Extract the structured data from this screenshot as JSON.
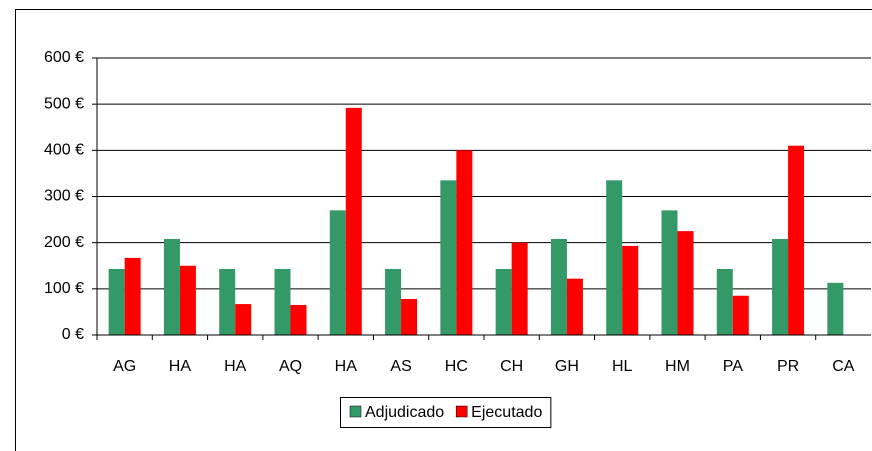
{
  "chart_data": {
    "type": "bar",
    "categories": [
      "AG",
      "HA",
      "HA",
      "AQ",
      "HA",
      "AS",
      "HC",
      "CH",
      "GH",
      "HL",
      "HM",
      "PA",
      "PR",
      "CA"
    ],
    "series": [
      {
        "name": "Adjudicado",
        "color": "#339966",
        "values": [
          143,
          208,
          143,
          143,
          270,
          143,
          335,
          143,
          208,
          335,
          270,
          143,
          208,
          113
        ]
      },
      {
        "name": "Ejecutado",
        "color": "#ff0000",
        "values": [
          167,
          150,
          67,
          65,
          492,
          78,
          400,
          200,
          122,
          193,
          225,
          85,
          410,
          null
        ]
      }
    ],
    "ylim": [
      0,
      600
    ],
    "yticks": [
      {
        "value": 0,
        "label": "0 €"
      },
      {
        "value": 100,
        "label": "100 €"
      },
      {
        "value": 200,
        "label": "200 €"
      },
      {
        "value": 300,
        "label": "300 €"
      },
      {
        "value": 400,
        "label": "400 €"
      },
      {
        "value": 500,
        "label": "500 €"
      },
      {
        "value": 600,
        "label": "600 €"
      }
    ],
    "grid": true,
    "legend": "bottom"
  }
}
